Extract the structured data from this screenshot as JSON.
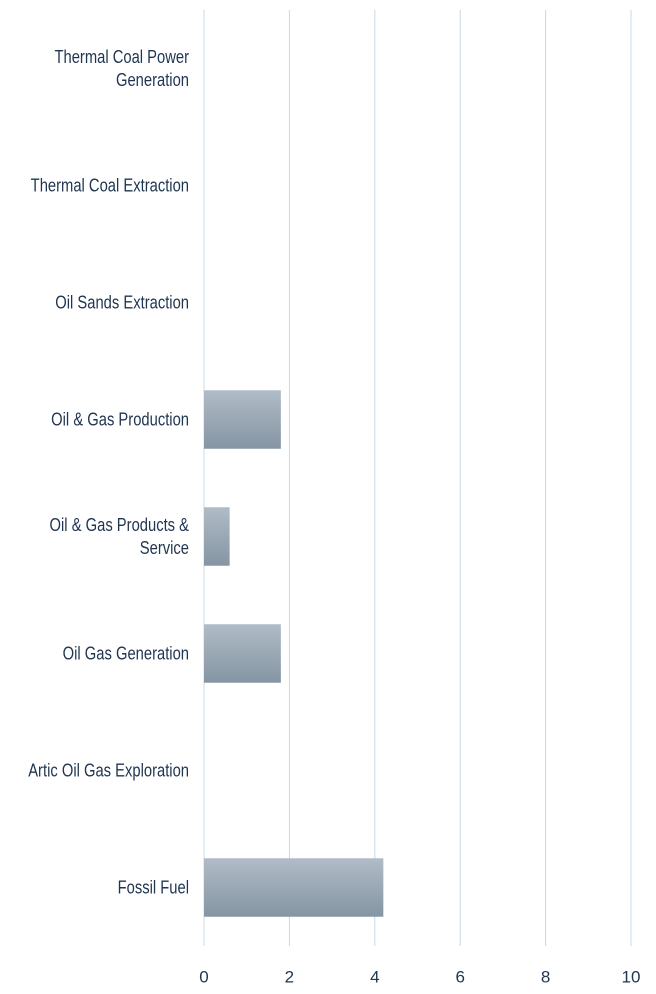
{
  "chart_data": {
    "type": "barh",
    "categories": [
      "Thermal Coal Power Generation",
      "Thermal Coal Extraction",
      "Oil Sands Extraction",
      "Oil & Gas Production",
      "Oil & Gas Products & Service",
      "Oil Gas Generation",
      "Artic Oil Gas Exploration",
      "Fossil Fuel"
    ],
    "values": [
      0,
      0,
      0,
      1.8,
      0.6,
      1.8,
      0,
      4.2
    ],
    "color": "#9aa8b4",
    "xlim": [
      0,
      10
    ],
    "xticks": [
      0,
      2,
      4,
      6,
      8,
      10
    ],
    "grid": true
  }
}
